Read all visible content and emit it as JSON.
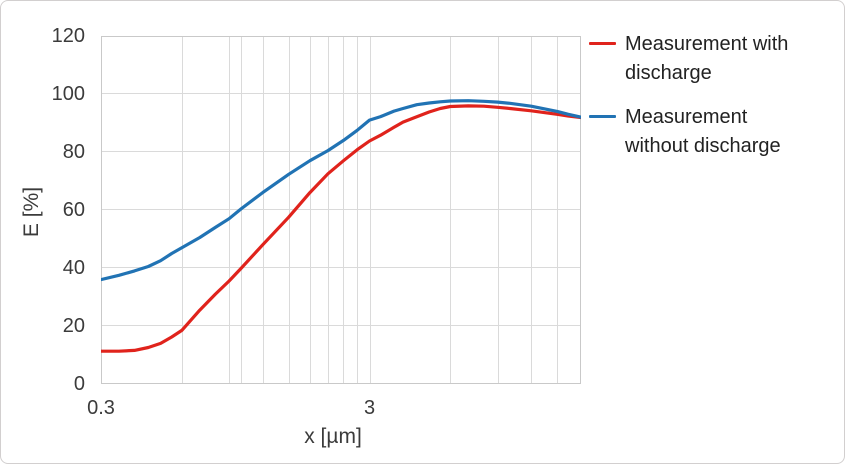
{
  "chart_data": {
    "type": "line",
    "title": "",
    "xlabel": "x [µm]",
    "ylabel": "E [%]",
    "x_scale": "log",
    "x_range": [
      0.3,
      18.4
    ],
    "y_range": [
      0,
      120
    ],
    "y_ticks": [
      120,
      100,
      80,
      60,
      40,
      20,
      0
    ],
    "x_ticks": [
      {
        "v": 0.3,
        "label": "0.3"
      },
      {
        "v": 3,
        "label": "3"
      }
    ],
    "x_minor_gridlines": [
      0.6,
      0.9,
      1,
      1.2,
      1.5,
      1.8,
      2.1,
      2.4,
      2.7,
      3,
      6,
      9,
      12,
      15
    ],
    "grid": true,
    "legend_position": "right",
    "series": [
      {
        "name": "Measurement with discharge",
        "color": "#e0231c",
        "points": [
          [
            0.3,
            11.3
          ],
          [
            0.35,
            11.3
          ],
          [
            0.4,
            11.6
          ],
          [
            0.45,
            12.6
          ],
          [
            0.5,
            14
          ],
          [
            0.55,
            16.2
          ],
          [
            0.6,
            18.5
          ],
          [
            0.7,
            25.5
          ],
          [
            0.8,
            31
          ],
          [
            0.9,
            35.5
          ],
          [
            1,
            40
          ],
          [
            1.2,
            48
          ],
          [
            1.5,
            57.5
          ],
          [
            1.8,
            66
          ],
          [
            2.1,
            72.5
          ],
          [
            2.4,
            77
          ],
          [
            2.7,
            80.8
          ],
          [
            3,
            83.8
          ],
          [
            3.3,
            85.8
          ],
          [
            3.7,
            88.5
          ],
          [
            4,
            90.3
          ],
          [
            4.4,
            91.8
          ],
          [
            5,
            93.8
          ],
          [
            5.5,
            95
          ],
          [
            6,
            95.7
          ],
          [
            7,
            95.9
          ],
          [
            8,
            95.8
          ],
          [
            9,
            95.4
          ],
          [
            10,
            95
          ],
          [
            12,
            94.2
          ],
          [
            15,
            93
          ],
          [
            16.5,
            92.4
          ],
          [
            18.4,
            91.9
          ]
        ]
      },
      {
        "name": "Measurement without discharge",
        "color": "#2173b4",
        "points": [
          [
            0.3,
            36
          ],
          [
            0.35,
            37.5
          ],
          [
            0.4,
            39
          ],
          [
            0.45,
            40.5
          ],
          [
            0.5,
            42.5
          ],
          [
            0.55,
            45
          ],
          [
            0.6,
            47
          ],
          [
            0.7,
            50.5
          ],
          [
            0.8,
            54
          ],
          [
            0.9,
            57
          ],
          [
            1,
            60.5
          ],
          [
            1.2,
            66
          ],
          [
            1.5,
            72.3
          ],
          [
            1.8,
            77
          ],
          [
            2.1,
            80.5
          ],
          [
            2.4,
            84
          ],
          [
            2.7,
            87.5
          ],
          [
            3,
            91
          ],
          [
            3.3,
            92.2
          ],
          [
            3.7,
            94.1
          ],
          [
            4,
            95
          ],
          [
            4.5,
            96.3
          ],
          [
            5,
            96.9
          ],
          [
            5.5,
            97.3
          ],
          [
            6,
            97.6
          ],
          [
            7,
            97.7
          ],
          [
            8,
            97.5
          ],
          [
            9,
            97.2
          ],
          [
            10,
            96.8
          ],
          [
            12,
            95.8
          ],
          [
            15,
            94
          ],
          [
            16.5,
            93
          ],
          [
            18.4,
            92
          ]
        ]
      }
    ],
    "colors": {
      "gridline": "#dadada",
      "plot_border": "#c9c9c9",
      "tick_text": "#3b3b3b",
      "legend_text": "#222222"
    }
  },
  "legend": {
    "items": [
      {
        "lines": [
          "Measurement with",
          "discharge"
        ]
      },
      {
        "lines": [
          "Measurement",
          "without discharge"
        ]
      }
    ]
  }
}
